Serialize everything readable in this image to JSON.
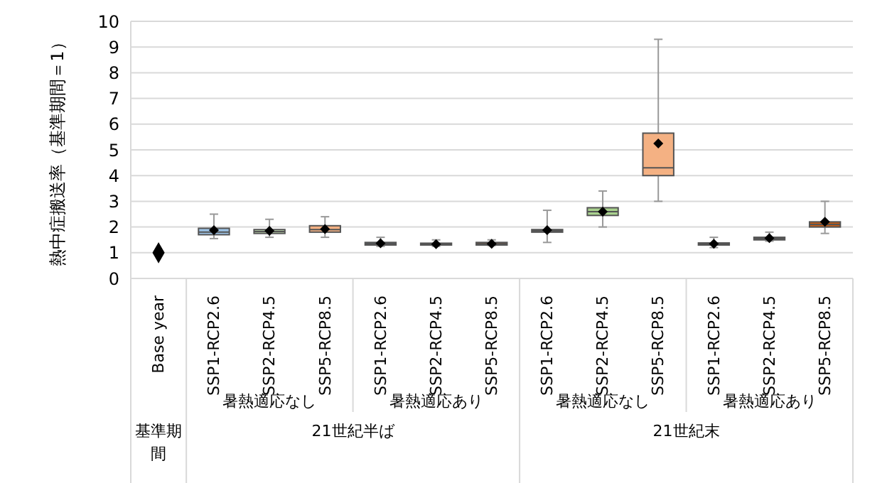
{
  "chart_data": {
    "type": "box",
    "ylabel": "熱中症搬送率（基準期間＝1）",
    "categories": [
      "Base year",
      "SSP1-RCP2.6",
      "SSP2-RCP4.5",
      "SSP5-RCP8.5",
      "SSP1-RCP2.6",
      "SSP2-RCP4.5",
      "SSP5-RCP8.5",
      "SSP1-RCP2.6",
      "SSP2-RCP4.5",
      "SSP5-RCP8.5",
      "SSP1-RCP2.6",
      "SSP2-RCP4.5",
      "SSP5-RCP8.5"
    ],
    "series": [
      {
        "type": "box",
        "colors": [
          null,
          "#9dc3e6",
          "#c5e0b4",
          "#f4b183",
          "#44546a",
          "#333333",
          "#843c0c",
          "#1f3864",
          "#a9d18e",
          "#f4b183",
          "#333333",
          "#a9d18e",
          "#c55a11"
        ],
        "boxes": [
          null,
          {
            "low": 1.55,
            "q1": 1.7,
            "median": 1.8,
            "q3": 1.95,
            "high": 2.5,
            "mean": 1.88
          },
          {
            "low": 1.6,
            "q1": 1.75,
            "median": 1.82,
            "q3": 1.9,
            "high": 2.3,
            "mean": 1.85
          },
          {
            "low": 1.6,
            "q1": 1.8,
            "median": 1.9,
            "q3": 2.05,
            "high": 2.4,
            "mean": 1.92
          },
          {
            "low": 1.25,
            "q1": 1.3,
            "median": 1.35,
            "q3": 1.4,
            "high": 1.6,
            "mean": 1.37
          },
          {
            "low": 1.25,
            "q1": 1.3,
            "median": 1.33,
            "q3": 1.37,
            "high": 1.5,
            "mean": 1.33
          },
          {
            "low": 1.28,
            "q1": 1.3,
            "median": 1.35,
            "q3": 1.4,
            "high": 1.5,
            "mean": 1.35
          },
          {
            "low": 1.4,
            "q1": 1.8,
            "median": 1.85,
            "q3": 1.9,
            "high": 2.65,
            "mean": 1.88
          },
          {
            "low": 2.0,
            "q1": 2.45,
            "median": 2.6,
            "q3": 2.75,
            "high": 3.4,
            "mean": 2.6
          },
          {
            "low": 3.0,
            "q1": 4.0,
            "median": 4.3,
            "q3": 5.65,
            "high": 9.3,
            "mean": 5.25
          },
          {
            "low": 1.2,
            "q1": 1.3,
            "median": 1.34,
            "q3": 1.38,
            "high": 1.6,
            "mean": 1.35
          },
          {
            "low": 1.45,
            "q1": 1.5,
            "median": 1.55,
            "q3": 1.6,
            "high": 1.8,
            "mean": 1.57
          },
          {
            "low": 1.75,
            "q1": 2.0,
            "median": 2.1,
            "q3": 2.2,
            "high": 3.0,
            "mean": 2.2
          }
        ]
      },
      {
        "type": "scatter",
        "x": [
          "Base year"
        ],
        "values": [
          1
        ],
        "color": "#000000",
        "marker": "diamond"
      }
    ],
    "ylim": [
      0,
      10
    ],
    "yticks": [
      0,
      1,
      2,
      3,
      4,
      5,
      6,
      7,
      8,
      9,
      10
    ],
    "grid": "y",
    "annotations": [
      "暑熱適応なし",
      "暑熱適応あり",
      "暑熱適応なし",
      "暑熱適応あり",
      "21世紀半ば",
      "21世紀末",
      "基準期間"
    ]
  }
}
